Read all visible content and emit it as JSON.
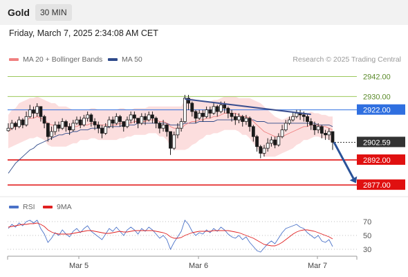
{
  "header": {
    "asset": "Gold",
    "timeframe": "30 MIN",
    "datetime": "Friday, March 7, 2025 2:34:08 AM CET"
  },
  "legend": {
    "ma20_label": "MA 20 + Bollinger Bands",
    "ma20_color": "#f08080",
    "ma50_label": "MA 50",
    "ma50_color": "#2e4a8a",
    "credit": "Research © 2025 Trading Central"
  },
  "rsi_legend": {
    "rsi_label": "RSI",
    "rsi_color": "#4a72c8",
    "ma_label": "9MA",
    "ma_color": "#e02020"
  },
  "colors": {
    "up": "#1a1a1a",
    "down": "#1a1a1a",
    "support": "#e01010",
    "resistance": "#9bc85a",
    "pivot": "#2f6fe0",
    "arrow": "#2a5298"
  },
  "chart_data": [
    {
      "type": "candlestick",
      "ylim": [
        2870,
        2948
      ],
      "x_labels": [
        "Mar 5",
        "Mar 6",
        "Mar 7"
      ],
      "levels": [
        {
          "value": 2942.0,
          "label": "2942.00",
          "kind": "resistance"
        },
        {
          "value": 2930.0,
          "label": "2930.00",
          "kind": "resistance"
        },
        {
          "value": 2922.0,
          "label": "2922.00",
          "kind": "pivot"
        },
        {
          "value": 2892.0,
          "label": "2892.00",
          "kind": "support"
        },
        {
          "value": 2877.0,
          "label": "2877.00",
          "kind": "support"
        }
      ],
      "current_price": {
        "value": 2902.59,
        "label": "2902.59"
      },
      "trendline": [
        [
          2928.5,
          2919.3
        ]
      ],
      "forecast_arrow": {
        "from": 2902.6,
        "to": 2878.5
      },
      "close": [
        2911,
        2914,
        2912,
        2916,
        2913,
        2918,
        2922,
        2920,
        2924,
        2918,
        2914,
        2906,
        2909,
        2913,
        2911,
        2915,
        2912,
        2910,
        2914,
        2916,
        2913,
        2917,
        2919,
        2915,
        2913,
        2911,
        2908,
        2912,
        2916,
        2914,
        2918,
        2915,
        2912,
        2916,
        2919,
        2917,
        2914,
        2918,
        2916,
        2919,
        2917,
        2914,
        2911,
        2913,
        2909,
        2899,
        2907,
        2911,
        2915,
        2929,
        2926,
        2921,
        2917,
        2920,
        2918,
        2922,
        2920,
        2924,
        2921,
        2925,
        2923,
        2920,
        2918,
        2916,
        2918,
        2915,
        2917,
        2912,
        2906,
        2900,
        2896,
        2899,
        2902,
        2904,
        2901,
        2906,
        2910,
        2914,
        2916,
        2918,
        2920,
        2919,
        2918,
        2915,
        2913,
        2910,
        2912,
        2908,
        2907,
        2909,
        2902.59
      ],
      "high": [
        2914,
        2916,
        2915,
        2918,
        2917,
        2921,
        2925,
        2924,
        2926,
        2922,
        2919,
        2912,
        2912,
        2915,
        2915,
        2917,
        2916,
        2914,
        2916,
        2918,
        2918,
        2919,
        2921,
        2920,
        2917,
        2915,
        2913,
        2914,
        2918,
        2918,
        2920,
        2919,
        2915,
        2918,
        2921,
        2921,
        2917,
        2920,
        2920,
        2921,
        2921,
        2918,
        2915,
        2916,
        2914,
        2906,
        2909,
        2914,
        2917,
        2931,
        2931,
        2927,
        2922,
        2922,
        2922,
        2924,
        2924,
        2926,
        2925,
        2927,
        2927,
        2924,
        2922,
        2920,
        2920,
        2919,
        2919,
        2918,
        2913,
        2907,
        2901,
        2901,
        2905,
        2906,
        2906,
        2908,
        2913,
        2916,
        2918,
        2921,
        2922,
        2922,
        2921,
        2920,
        2917,
        2915,
        2914,
        2913,
        2910,
        2911,
        2909
      ],
      "low": [
        2909,
        2910,
        2910,
        2911,
        2911,
        2912,
        2917,
        2917,
        2918,
        2915,
        2911,
        2903,
        2904,
        2907,
        2909,
        2910,
        2909,
        2907,
        2909,
        2913,
        2911,
        2912,
        2915,
        2912,
        2910,
        2908,
        2905,
        2907,
        2911,
        2911,
        2913,
        2912,
        2909,
        2911,
        2914,
        2914,
        2911,
        2913,
        2913,
        2915,
        2914,
        2911,
        2908,
        2909,
        2906,
        2895,
        2898,
        2905,
        2909,
        2914,
        2922,
        2918,
        2914,
        2916,
        2915,
        2917,
        2917,
        2919,
        2918,
        2920,
        2920,
        2917,
        2915,
        2913,
        2914,
        2912,
        2913,
        2909,
        2903,
        2897,
        2893,
        2894,
        2897,
        2900,
        2899,
        2900,
        2905,
        2909,
        2913,
        2915,
        2917,
        2916,
        2915,
        2912,
        2910,
        2907,
        2908,
        2905,
        2904,
        2904,
        2898
      ],
      "ma20": [
        2909,
        2911,
        2912,
        2914,
        2915,
        2916,
        2917,
        2917,
        2918,
        2917,
        2916,
        2914,
        2913,
        2913,
        2912,
        2912,
        2912,
        2912,
        2912,
        2912,
        2913,
        2913,
        2913,
        2914,
        2914,
        2913,
        2913,
        2913,
        2913,
        2913,
        2913,
        2914,
        2914,
        2914,
        2914,
        2915,
        2915,
        2915,
        2915,
        2916,
        2916,
        2916,
        2915,
        2915,
        2914,
        2912,
        2911,
        2911,
        2911,
        2913,
        2914,
        2915,
        2915,
        2916,
        2916,
        2917,
        2917,
        2918,
        2918,
        2919,
        2920,
        2920,
        2920,
        2920,
        2919,
        2918,
        2918,
        2917,
        2915,
        2913,
        2911,
        2909,
        2908,
        2907,
        2906,
        2906,
        2906,
        2907,
        2908,
        2909,
        2910,
        2911,
        2912,
        2912,
        2913,
        2913,
        2913,
        2912,
        2912,
        2911,
        2910
      ],
      "ma50": [
        2884,
        2887,
        2890,
        2892,
        2894,
        2896,
        2898,
        2899,
        2901,
        2902,
        2903,
        2904,
        2905,
        2906,
        2907,
        2907,
        2908,
        2908,
        2909,
        2909,
        2910,
        2910,
        2910,
        2911,
        2911,
        2911,
        2911,
        2911,
        2912,
        2912,
        2912,
        2912,
        2913,
        2913,
        2913,
        2913,
        2914,
        2914,
        2914,
        2914,
        2914,
        2914,
        2914,
        2914,
        2914,
        2913,
        2913,
        2913,
        2913,
        2914,
        2914,
        2914,
        2914,
        2915,
        2915,
        2915,
        2915,
        2915,
        2916,
        2916,
        2916,
        2916,
        2916,
        2916,
        2916,
        2916,
        2916,
        2916,
        2916,
        2915,
        2915,
        2915,
        2914,
        2914,
        2914,
        2914,
        2914,
        2914,
        2914,
        2914,
        2914,
        2914,
        2914,
        2914,
        2914,
        2914,
        2913,
        2913,
        2913,
        2913,
        2912
      ],
      "bb_width": [
        10,
        11,
        11,
        12,
        12,
        12,
        12,
        12,
        12,
        12,
        12,
        13,
        13,
        13,
        12,
        12,
        12,
        11,
        10,
        10,
        9,
        9,
        9,
        9,
        9,
        9,
        9,
        9,
        9,
        9,
        9,
        9,
        9,
        8,
        8,
        8,
        8,
        8,
        8,
        8,
        8,
        8,
        9,
        9,
        10,
        12,
        13,
        13,
        13,
        15,
        15,
        14,
        13,
        12,
        11,
        10,
        10,
        10,
        10,
        10,
        10,
        10,
        10,
        10,
        10,
        11,
        11,
        12,
        13,
        14,
        15,
        15,
        14,
        13,
        12,
        11,
        10,
        10,
        10,
        10,
        9,
        9,
        8,
        8,
        8,
        7,
        7,
        7,
        7,
        7,
        8
      ]
    },
    {
      "type": "line",
      "series": [
        {
          "name": "RSI",
          "values": [
            60,
            66,
            62,
            68,
            64,
            70,
            72,
            68,
            72,
            60,
            52,
            40,
            46,
            54,
            50,
            58,
            52,
            48,
            56,
            60,
            54,
            60,
            64,
            56,
            52,
            48,
            44,
            52,
            60,
            56,
            62,
            56,
            50,
            58,
            62,
            58,
            52,
            60,
            56,
            62,
            58,
            52,
            46,
            50,
            44,
            30,
            40,
            48,
            56,
            72,
            66,
            56,
            50,
            54,
            52,
            58,
            54,
            60,
            56,
            62,
            58,
            52,
            48,
            46,
            50,
            44,
            48,
            40,
            34,
            28,
            26,
            32,
            38,
            42,
            38,
            46,
            54,
            60,
            62,
            64,
            66,
            62,
            60,
            54,
            50,
            46,
            50,
            42,
            40,
            44,
            34
          ]
        },
        {
          "name": "9MA",
          "values": [
            62,
            63,
            64,
            65,
            66,
            66,
            67,
            67,
            68,
            66,
            63,
            58,
            55,
            53,
            52,
            52,
            52,
            52,
            53,
            54,
            55,
            56,
            57,
            57,
            56,
            55,
            54,
            53,
            53,
            54,
            55,
            56,
            55,
            55,
            56,
            57,
            57,
            57,
            57,
            57,
            57,
            56,
            55,
            54,
            52,
            48,
            46,
            46,
            47,
            50,
            52,
            54,
            55,
            56,
            56,
            56,
            56,
            57,
            57,
            57,
            57,
            57,
            56,
            55,
            54,
            52,
            50,
            48,
            46,
            43,
            40,
            37,
            36,
            35,
            35,
            37,
            40,
            44,
            48,
            52,
            55,
            57,
            58,
            58,
            57,
            56,
            54,
            52,
            50,
            48,
            45
          ]
        }
      ],
      "ylim": [
        20,
        80
      ],
      "ticks": [
        70,
        50,
        30
      ]
    }
  ]
}
